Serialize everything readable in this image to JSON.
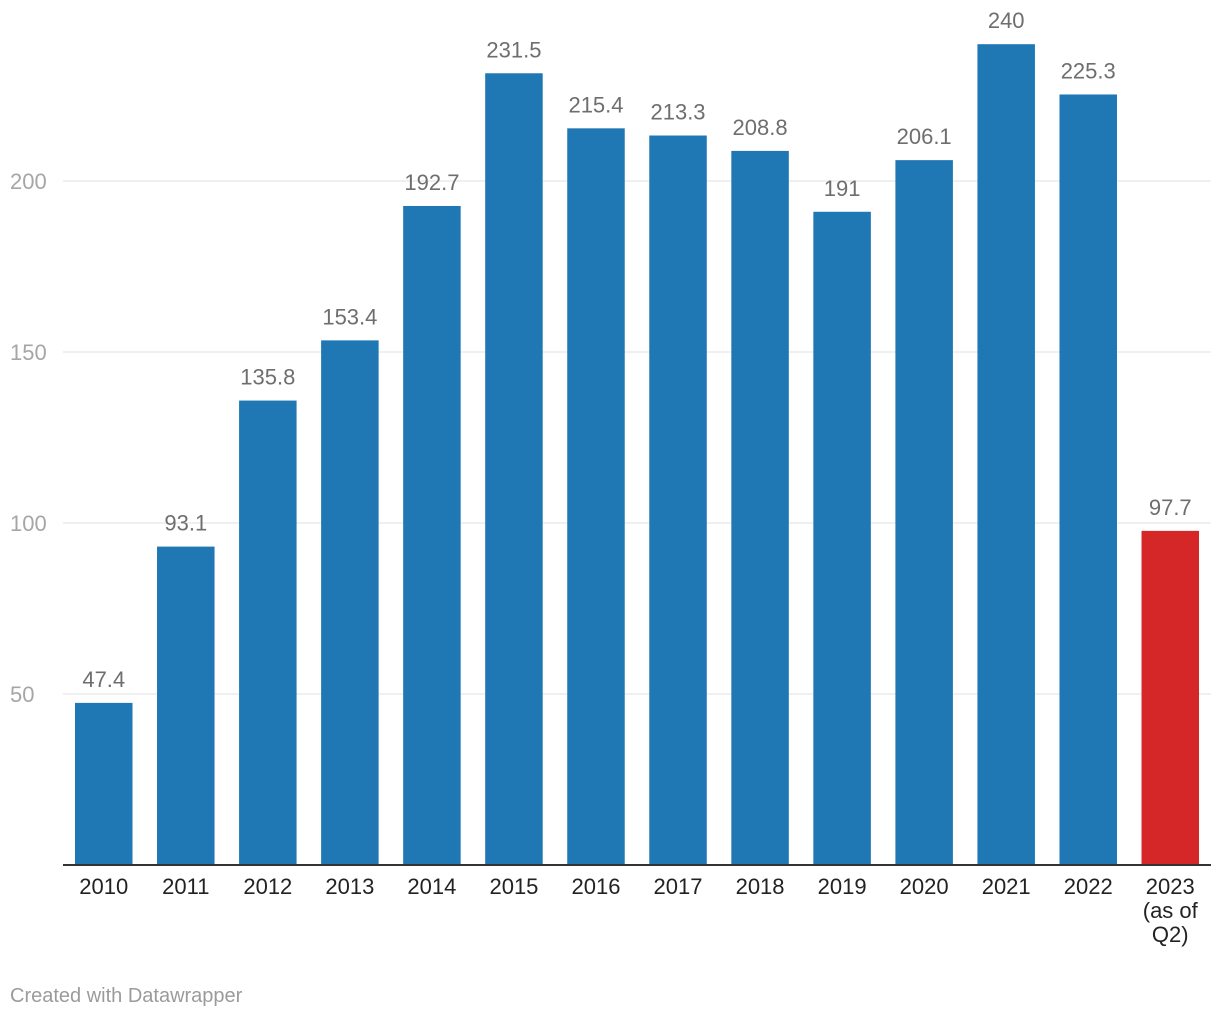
{
  "chart_data": {
    "type": "bar",
    "title": "",
    "xlabel": "",
    "ylabel": "",
    "ylim": [
      0,
      250
    ],
    "yticks": [
      50,
      100,
      150,
      200
    ],
    "grid": true,
    "categories": [
      "2010",
      "2011",
      "2012",
      "2013",
      "2014",
      "2015",
      "2016",
      "2017",
      "2018",
      "2019",
      "2020",
      "2021",
      "2022",
      "2023 (as of Q2)"
    ],
    "category_lines": [
      [
        "2010"
      ],
      [
        "2011"
      ],
      [
        "2012"
      ],
      [
        "2013"
      ],
      [
        "2014"
      ],
      [
        "2015"
      ],
      [
        "2016"
      ],
      [
        "2017"
      ],
      [
        "2018"
      ],
      [
        "2019"
      ],
      [
        "2020"
      ],
      [
        "2021"
      ],
      [
        "2022"
      ],
      [
        "2023",
        "(as of",
        "Q2)"
      ]
    ],
    "values": [
      47.4,
      93.1,
      135.8,
      153.4,
      192.7,
      231.5,
      215.4,
      213.3,
      208.8,
      191,
      206.1,
      240,
      225.3,
      97.7
    ],
    "value_labels": [
      "47.4",
      "93.1",
      "135.8",
      "153.4",
      "192.7",
      "231.5",
      "215.4",
      "213.3",
      "208.8",
      "191",
      "206.1",
      "240",
      "225.3",
      "97.7"
    ],
    "colors": {
      "default": "#1f77b4",
      "highlight": "#d62728"
    },
    "highlight_category": "2023 (as of Q2)"
  },
  "footer": {
    "credit": "Created with Datawrapper"
  }
}
